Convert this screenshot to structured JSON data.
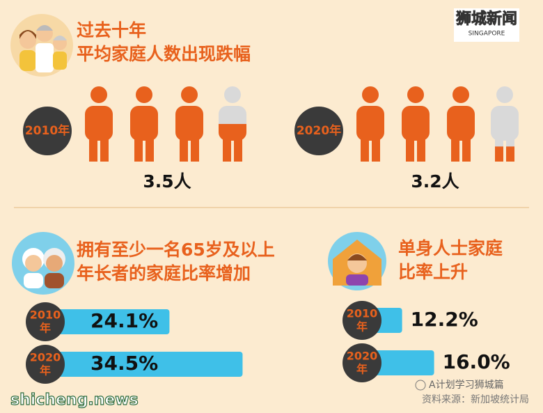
{
  "logo": {
    "name": "狮城新闻",
    "tagline": "SINGAPORE"
  },
  "household_size": {
    "title_lines": [
      "过去十年",
      "平均家庭人数出现跌幅"
    ],
    "panels": [
      {
        "year": "2010年",
        "value": 3.5,
        "value_label": "3.5人"
      },
      {
        "year": "2020年",
        "value": 3.2,
        "value_label": "3.2人"
      }
    ]
  },
  "elderly_households": {
    "title_lines": [
      "拥有至少一名65岁及以上",
      "年长者的家庭比率增加"
    ],
    "bars": [
      {
        "year_lines": [
          "2010",
          "年"
        ],
        "value": 24.1,
        "value_label": "24.1%"
      },
      {
        "year_lines": [
          "2020",
          "年"
        ],
        "value": 34.5,
        "value_label": "34.5%"
      }
    ]
  },
  "single_households": {
    "title_lines": [
      "单身人士家庭",
      "比率上升"
    ],
    "bars": [
      {
        "year_lines": [
          "2010",
          "年"
        ],
        "value": 12.2,
        "value_label": "12.2%"
      },
      {
        "year_lines": [
          "2020",
          "年"
        ],
        "value": 16.0,
        "value_label": "16.0%"
      }
    ]
  },
  "footer": {
    "site": "shicheng.news",
    "account": "A计划学习狮城篇",
    "source": "资料来源：新加坡统计局"
  }
}
